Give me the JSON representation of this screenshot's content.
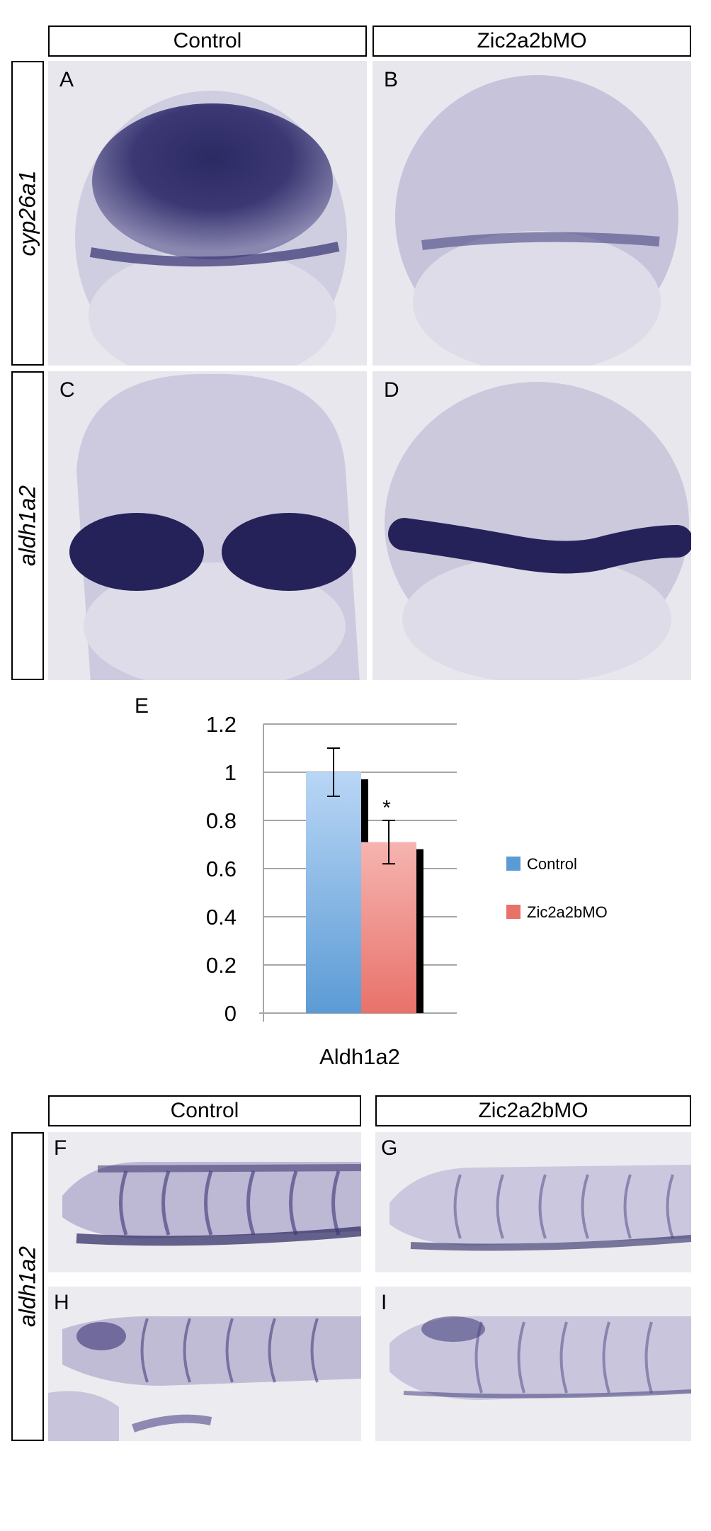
{
  "top": {
    "columns": [
      "Control",
      "Zic2a2bMO"
    ],
    "rows": [
      "cyp26a1",
      "aldh1a2"
    ],
    "panels": [
      "A",
      "B",
      "C",
      "D"
    ]
  },
  "chart": {
    "panel_letter": "E",
    "significance_mark": "*"
  },
  "chart_data": {
    "type": "bar",
    "categories": [
      "Aldh1a2"
    ],
    "series": [
      {
        "name": "Control",
        "values": [
          1.0
        ],
        "error": [
          0.1
        ],
        "color": "#5b9bd5"
      },
      {
        "name": "Zic2a2bMO",
        "values": [
          0.71
        ],
        "error": [
          0.09
        ],
        "color": "#e8726a"
      }
    ],
    "xlabel": "Aldh1a2",
    "ylabel": "",
    "ylim": [
      0,
      1.2
    ],
    "yticks": [
      "0",
      "0.2",
      "0.4",
      "0.6",
      "0.8",
      "1",
      "1.2"
    ],
    "grid": true,
    "legend": "right"
  },
  "bottom": {
    "columns": [
      "Control",
      "Zic2a2bMO"
    ],
    "row": "aldh1a2",
    "panels": [
      "F",
      "G",
      "H",
      "I"
    ]
  },
  "colors": {
    "stain": "#2a2660",
    "tissue": "#c9c6dc",
    "background": "#e9e8ee"
  }
}
